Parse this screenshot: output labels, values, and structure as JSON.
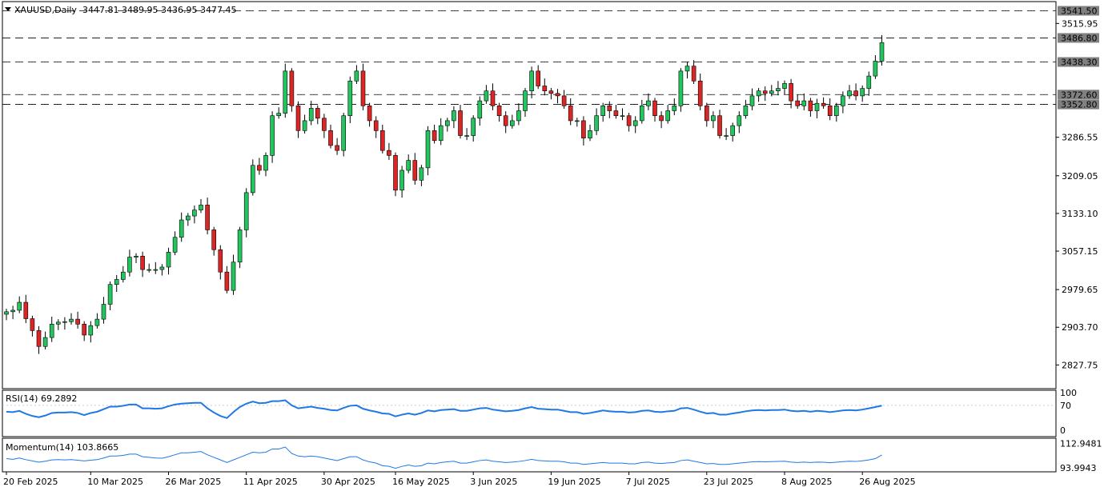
{
  "header": {
    "symbol_info": "XAUUSD,Daily",
    "ohlc": "3447.81 3489.95 3436.95 3477.45"
  },
  "rsi_header": "RSI(14) 69.2892",
  "momentum_header": "Momentum(14) 103.8665",
  "colors": {
    "bull": "#22c55e",
    "bear": "#dc2626",
    "indicator": "#1e78e6",
    "wick": "#000000"
  },
  "chart_data": [
    {
      "type": "candlestick",
      "title": "XAUUSD,Daily",
      "ylim": [
        2780,
        3560
      ],
      "yticks": [
        "3515.95",
        "3286.55",
        "3209.05",
        "3133.10",
        "3057.15",
        "2979.65",
        "2903.70",
        "2827.75"
      ],
      "xticks": [
        {
          "index": 0,
          "label": "20 Feb 2025"
        },
        {
          "index": 13,
          "label": "10 Mar 2025"
        },
        {
          "index": 25,
          "label": "26 Mar 2025"
        },
        {
          "index": 37,
          "label": "11 Apr 2025"
        },
        {
          "index": 49,
          "label": "30 Apr 2025"
        },
        {
          "index": 60,
          "label": "16 May 2025"
        },
        {
          "index": 72,
          "label": "3 Jun 2025"
        },
        {
          "index": 84,
          "label": "19 Jun 2025"
        },
        {
          "index": 96,
          "label": "7 Jul 2025"
        },
        {
          "index": 108,
          "label": "23 Jul 2025"
        },
        {
          "index": 120,
          "label": "8 Aug 2025"
        },
        {
          "index": 132,
          "label": "26 Aug 2025"
        }
      ],
      "levels": [
        {
          "value": 3541.5,
          "label": "3541.50"
        },
        {
          "value": 3486.8,
          "label": "3486.80"
        },
        {
          "value": 3438.3,
          "label": "3438.30"
        },
        {
          "value": 3372.6,
          "label": "3372.60"
        },
        {
          "value": 3352.8,
          "label": "3352.80"
        }
      ],
      "closes": [
        2935,
        2938,
        2954,
        2921,
        2897,
        2865,
        2883,
        2910,
        2914,
        2915,
        2920,
        2910,
        2888,
        2907,
        2920,
        2950,
        2990,
        3000,
        3015,
        3045,
        3047,
        3020,
        3020,
        3020,
        3025,
        3055,
        3085,
        3120,
        3128,
        3140,
        3150,
        3100,
        3060,
        3015,
        2978,
        3035,
        3100,
        3175,
        3230,
        3220,
        3250,
        3330,
        3335,
        3420,
        3350,
        3300,
        3320,
        3345,
        3325,
        3300,
        3270,
        3260,
        3330,
        3400,
        3420,
        3350,
        3320,
        3300,
        3260,
        3250,
        3180,
        3220,
        3240,
        3200,
        3225,
        3300,
        3280,
        3310,
        3320,
        3340,
        3290,
        3290,
        3325,
        3360,
        3380,
        3350,
        3330,
        3310,
        3320,
        3340,
        3380,
        3420,
        3390,
        3380,
        3375,
        3370,
        3350,
        3320,
        3320,
        3285,
        3300,
        3330,
        3350,
        3340,
        3330,
        3330,
        3310,
        3320,
        3350,
        3360,
        3330,
        3320,
        3340,
        3350,
        3420,
        3430,
        3400,
        3350,
        3320,
        3330,
        3290,
        3290,
        3310,
        3330,
        3350,
        3370,
        3380,
        3375,
        3380,
        3385,
        3395,
        3360,
        3350,
        3360,
        3340,
        3355,
        3350,
        3330,
        3350,
        3370,
        3380,
        3370,
        3385,
        3410,
        3440,
        3477.45
      ],
      "rsi": {
        "name": "RSI(14)",
        "ylim": [
          0,
          100
        ],
        "ticks": [
          "100",
          "70",
          "0"
        ],
        "values": [
          55,
          54,
          57,
          50,
          45,
          42,
          46,
          52,
          53,
          53,
          54,
          52,
          47,
          52,
          55,
          61,
          67,
          67,
          69,
          72,
          72,
          63,
          63,
          62,
          63,
          68,
          72,
          74,
          75,
          76,
          76,
          63,
          53,
          45,
          40,
          54,
          66,
          74,
          79,
          75,
          76,
          80,
          80,
          82,
          70,
          63,
          65,
          67,
          64,
          62,
          59,
          58,
          64,
          69,
          70,
          62,
          58,
          55,
          51,
          50,
          44,
          48,
          51,
          48,
          52,
          58,
          56,
          59,
          60,
          61,
          57,
          57,
          60,
          63,
          64,
          60,
          58,
          56,
          57,
          59,
          63,
          66,
          62,
          61,
          60,
          60,
          57,
          54,
          54,
          50,
          52,
          55,
          58,
          56,
          55,
          55,
          53,
          54,
          57,
          58,
          55,
          54,
          56,
          57,
          63,
          64,
          60,
          55,
          51,
          52,
          48,
          48,
          51,
          53,
          56,
          58,
          59,
          58,
          59,
          59,
          60,
          57,
          56,
          57,
          55,
          57,
          56,
          54,
          56,
          58,
          59,
          58,
          60,
          63,
          66,
          69.29
        ]
      },
      "momentum": {
        "name": "Momentum(14)",
        "ylim": [
          92,
          115
        ],
        "ticks": [
          "112.9481",
          "93.9943"
        ],
        "values": [
          101,
          100.5,
          101.5,
          100.2,
          99.2,
          98.2,
          99,
          100,
          100.2,
          100,
          100.2,
          99.8,
          99.2,
          99.8,
          100.2,
          101.5,
          103,
          103,
          103.5,
          104.5,
          104.5,
          102.5,
          102,
          101.5,
          101.3,
          102.5,
          104,
          105.5,
          105.5,
          106,
          106.5,
          104,
          102,
          100,
          98,
          100,
          102,
          104,
          106,
          105.5,
          106,
          108.5,
          108.5,
          110,
          105,
          103,
          102.5,
          103,
          102.5,
          101.5,
          100.5,
          99.5,
          101,
          102.5,
          102.5,
          100,
          98.5,
          97.5,
          95.5,
          95,
          93.5,
          95,
          96,
          95,
          95.5,
          97.5,
          97,
          98,
          98.5,
          99,
          97.5,
          97.5,
          98.5,
          99.5,
          100,
          99,
          98.5,
          98,
          98.3,
          98.8,
          99.5,
          100.5,
          99.5,
          99.2,
          99,
          99,
          98.5,
          97.5,
          97.5,
          96.5,
          97,
          97.5,
          98,
          97.5,
          97.5,
          97.5,
          97,
          97,
          98,
          98.3,
          97.5,
          97.2,
          97.7,
          98,
          99.5,
          100,
          99,
          98,
          97,
          97.2,
          96.5,
          96.5,
          97,
          97.5,
          98,
          98.5,
          98.7,
          98.5,
          98.7,
          98.8,
          99,
          98.3,
          98,
          98.3,
          98,
          98.3,
          98.2,
          97.8,
          98.2,
          98.7,
          99,
          98.8,
          99.3,
          100,
          101,
          103.87
        ]
      }
    }
  ]
}
